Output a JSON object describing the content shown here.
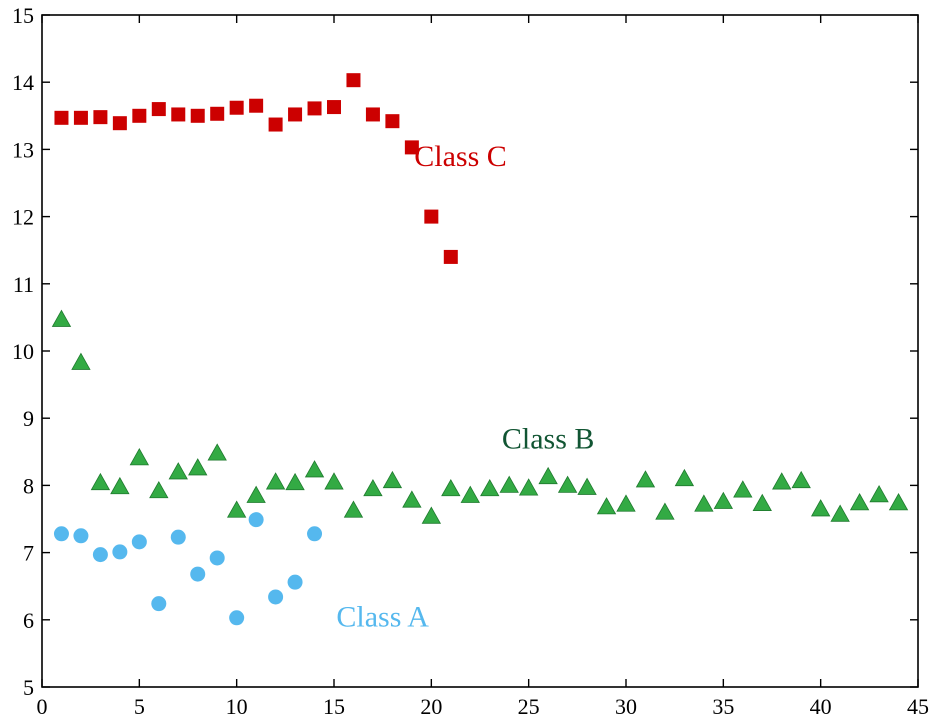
{
  "chart_data": {
    "type": "scatter",
    "title": "",
    "xlabel": "",
    "ylabel": "",
    "xlim": [
      0,
      45
    ],
    "ylim": [
      5,
      15
    ],
    "xticks": [
      "0",
      "5",
      "10",
      "15",
      "20",
      "25",
      "30",
      "35",
      "40",
      "45"
    ],
    "yticks": [
      "5",
      "6",
      "7",
      "8",
      "9",
      "10",
      "11",
      "12",
      "13",
      "14",
      "15"
    ],
    "grid": false,
    "legend": "none",
    "series": [
      {
        "marker": "square",
        "color": "#cc0000",
        "points": [
          [
            1,
            13.47
          ],
          [
            2,
            13.47
          ],
          [
            3,
            13.48
          ],
          [
            4,
            13.39
          ],
          [
            5,
            13.5
          ],
          [
            6,
            13.6
          ],
          [
            7,
            13.52
          ],
          [
            8,
            13.5
          ],
          [
            9,
            13.53
          ],
          [
            10,
            13.62
          ],
          [
            11,
            13.65
          ],
          [
            12,
            13.37
          ],
          [
            13,
            13.52
          ],
          [
            14,
            13.61
          ],
          [
            15,
            13.63
          ],
          [
            16,
            14.03
          ],
          [
            17,
            13.52
          ],
          [
            18,
            13.42
          ],
          [
            19,
            13.03
          ],
          [
            20,
            12.0
          ],
          [
            21,
            11.4
          ]
        ]
      },
      {
        "marker": "triangle",
        "color": "#33aa44",
        "points": [
          [
            1,
            10.47
          ],
          [
            2,
            9.83
          ],
          [
            3,
            8.04
          ],
          [
            4,
            7.98
          ],
          [
            5,
            8.41
          ],
          [
            6,
            7.92
          ],
          [
            7,
            8.2
          ],
          [
            8,
            8.26
          ],
          [
            9,
            8.48
          ],
          [
            10,
            7.63
          ],
          [
            11,
            7.85
          ],
          [
            12,
            8.05
          ],
          [
            13,
            8.04
          ],
          [
            14,
            8.23
          ],
          [
            15,
            8.05
          ],
          [
            16,
            7.63
          ],
          [
            17,
            7.95
          ],
          [
            18,
            8.07
          ],
          [
            19,
            7.78
          ],
          [
            20,
            7.54
          ],
          [
            21,
            7.95
          ],
          [
            22,
            7.85
          ],
          [
            23,
            7.95
          ],
          [
            24,
            8.0
          ],
          [
            25,
            7.96
          ],
          [
            26,
            8.13
          ],
          [
            27,
            8.0
          ],
          [
            28,
            7.97
          ],
          [
            29,
            7.68
          ],
          [
            30,
            7.72
          ],
          [
            31,
            8.08
          ],
          [
            32,
            7.6
          ],
          [
            33,
            8.1
          ],
          [
            34,
            7.72
          ],
          [
            35,
            7.76
          ],
          [
            36,
            7.93
          ],
          [
            37,
            7.73
          ],
          [
            38,
            8.05
          ],
          [
            39,
            8.07
          ],
          [
            40,
            7.65
          ],
          [
            41,
            7.57
          ],
          [
            42,
            7.74
          ],
          [
            43,
            7.86
          ],
          [
            44,
            7.74
          ]
        ]
      },
      {
        "marker": "circle",
        "color": "#55b8ee",
        "points": [
          [
            1,
            7.28
          ],
          [
            2,
            7.25
          ],
          [
            3,
            6.97
          ],
          [
            4,
            7.01
          ],
          [
            5,
            7.16
          ],
          [
            6,
            6.24
          ],
          [
            7,
            7.23
          ],
          [
            8,
            6.68
          ],
          [
            9,
            6.92
          ],
          [
            10,
            6.03
          ],
          [
            11,
            7.49
          ],
          [
            12,
            6.34
          ],
          [
            13,
            6.56
          ],
          [
            14,
            7.28
          ]
        ]
      }
    ],
    "annotations": [
      {
        "text": "Class C",
        "x": 21.5,
        "y": 12.75,
        "color": "#cc0000"
      },
      {
        "text": "Class B",
        "x": 26.0,
        "y": 8.55,
        "color": "#115533"
      },
      {
        "text": "Class A",
        "x": 17.5,
        "y": 5.9,
        "color": "#55b8ee"
      }
    ]
  }
}
